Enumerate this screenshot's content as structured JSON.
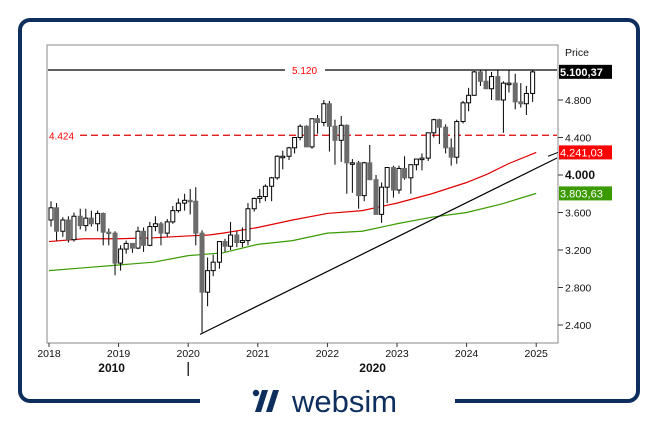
{
  "brand": {
    "name": "websim",
    "color": "#0e2f5e"
  },
  "axis": {
    "price_label": "Price",
    "hidden_tick": "5.200",
    "y_ticks": [
      {
        "value": 4800,
        "label": "4.800",
        "bold": false
      },
      {
        "value": 4400,
        "label": "4.400",
        "bold": false
      },
      {
        "value": 4000,
        "label": "4.000",
        "bold": true
      },
      {
        "value": 3600,
        "label": "3.600",
        "bold": false
      },
      {
        "value": 3200,
        "label": "3.200",
        "bold": false
      },
      {
        "value": 2800,
        "label": "2.800",
        "bold": false
      },
      {
        "value": 2400,
        "label": "2.400",
        "bold": false
      }
    ],
    "x_ticks": [
      "2018",
      "2019",
      "2020",
      "2021",
      "2022",
      "2023",
      "2024",
      "2025"
    ],
    "decades": [
      {
        "label": "2010",
        "x_year": 2018.9
      },
      {
        "label": "2020",
        "x_year": 2022.65
      }
    ]
  },
  "badges": {
    "last_price": {
      "label": "5.100,37",
      "value": 5100.37,
      "bg": "#000000",
      "fg": "#ffffff"
    },
    "ma_red": {
      "label": "4.241,03",
      "value": 4241.03,
      "bg": "#ff0000",
      "fg": "#ffffff"
    },
    "ma_green": {
      "label": "3.803,63",
      "value": 3803.63,
      "bg": "#3a9a00",
      "fg": "#ffffff"
    }
  },
  "levels": [
    {
      "label": "5.120",
      "value": 5120,
      "style": "solid",
      "color": "#000000",
      "label_color": "#ff0000"
    },
    {
      "label": "4.424",
      "value": 4424,
      "style": "dashed",
      "color": "#e00000",
      "label_color": "#ff0000"
    }
  ],
  "chart_data": {
    "type": "candlestick",
    "title": "",
    "ylabel": "Price",
    "ylim": [
      2250,
      5250
    ],
    "xlim": [
      2018.0,
      2025.3
    ],
    "grid": false,
    "series": [
      {
        "name": "Price (monthly OHLC)",
        "ohlc": [
          [
            2018.0,
            3520,
            3720,
            3450,
            3650
          ],
          [
            2018.08,
            3650,
            3700,
            3300,
            3400
          ],
          [
            2018.17,
            3400,
            3550,
            3340,
            3520
          ],
          [
            2018.25,
            3520,
            3560,
            3280,
            3310
          ],
          [
            2018.33,
            3310,
            3600,
            3290,
            3560
          ],
          [
            2018.42,
            3560,
            3640,
            3420,
            3460
          ],
          [
            2018.5,
            3460,
            3640,
            3400,
            3540
          ],
          [
            2018.58,
            3540,
            3620,
            3450,
            3480
          ],
          [
            2018.67,
            3480,
            3620,
            3400,
            3590
          ],
          [
            2018.75,
            3590,
            3600,
            3250,
            3390
          ],
          [
            2018.83,
            3390,
            3430,
            3250,
            3380
          ],
          [
            2018.92,
            3380,
            3400,
            2930,
            3060
          ],
          [
            2019.0,
            3060,
            3250,
            2980,
            3210
          ],
          [
            2019.08,
            3210,
            3300,
            3160,
            3270
          ],
          [
            2019.17,
            3270,
            3270,
            3170,
            3220
          ],
          [
            2019.25,
            3220,
            3450,
            3210,
            3400
          ],
          [
            2019.33,
            3400,
            3440,
            3180,
            3250
          ],
          [
            2019.42,
            3250,
            3500,
            3240,
            3450
          ],
          [
            2019.5,
            3450,
            3560,
            3400,
            3480
          ],
          [
            2019.58,
            3480,
            3500,
            3250,
            3380
          ],
          [
            2019.67,
            3380,
            3530,
            3340,
            3500
          ],
          [
            2019.75,
            3500,
            3670,
            3480,
            3620
          ],
          [
            2019.83,
            3620,
            3750,
            3600,
            3700
          ],
          [
            2019.92,
            3700,
            3800,
            3620,
            3730
          ],
          [
            2020.0,
            3730,
            3850,
            3580,
            3720
          ],
          [
            2020.08,
            3720,
            3870,
            3250,
            3380
          ],
          [
            2020.17,
            3380,
            3410,
            2320,
            2750
          ],
          [
            2020.25,
            2750,
            3120,
            2600,
            2980
          ],
          [
            2020.33,
            2980,
            3150,
            2920,
            3070
          ],
          [
            2020.42,
            3070,
            3230,
            3000,
            3290
          ],
          [
            2020.5,
            3290,
            3320,
            3180,
            3240
          ],
          [
            2020.58,
            3240,
            3500,
            3200,
            3360
          ],
          [
            2020.67,
            3360,
            3400,
            3230,
            3280
          ],
          [
            2020.75,
            3280,
            3440,
            3230,
            3300
          ],
          [
            2020.83,
            3300,
            3700,
            3250,
            3640
          ],
          [
            2020.92,
            3640,
            3760,
            3610,
            3750
          ],
          [
            2021.0,
            3750,
            3850,
            3700,
            3770
          ],
          [
            2021.08,
            3770,
            3900,
            3720,
            3880
          ],
          [
            2021.17,
            3880,
            3980,
            3720,
            3970
          ],
          [
            2021.25,
            3970,
            4210,
            3950,
            4200
          ],
          [
            2021.33,
            4200,
            4260,
            4060,
            4200
          ],
          [
            2021.42,
            4200,
            4300,
            4160,
            4290
          ],
          [
            2021.5,
            4290,
            4400,
            4230,
            4400
          ],
          [
            2021.58,
            4400,
            4540,
            4370,
            4520
          ],
          [
            2021.67,
            4520,
            4530,
            4300,
            4300
          ],
          [
            2021.75,
            4300,
            4540,
            4280,
            4600
          ],
          [
            2021.83,
            4600,
            4640,
            4440,
            4560
          ],
          [
            2021.92,
            4560,
            4800,
            4520,
            4760
          ],
          [
            2022.0,
            4760,
            4790,
            4250,
            4520
          ],
          [
            2022.08,
            4520,
            4590,
            4110,
            4370
          ],
          [
            2022.17,
            4370,
            4630,
            4140,
            4530
          ],
          [
            2022.25,
            4530,
            4540,
            3800,
            4130
          ],
          [
            2022.33,
            4130,
            4170,
            3810,
            4130
          ],
          [
            2022.42,
            4130,
            4150,
            3640,
            3780
          ],
          [
            2022.5,
            3780,
            4140,
            3720,
            4130
          ],
          [
            2022.58,
            4130,
            4320,
            3950,
            3950
          ],
          [
            2022.67,
            3950,
            4000,
            3590,
            3580
          ],
          [
            2022.75,
            3580,
            3920,
            3490,
            3870
          ],
          [
            2022.83,
            3870,
            4080,
            3700,
            4080
          ],
          [
            2022.92,
            4080,
            4100,
            3760,
            3840
          ],
          [
            2023.0,
            3840,
            4100,
            3800,
            4070
          ],
          [
            2023.08,
            4070,
            4200,
            3950,
            3970
          ],
          [
            2023.17,
            3970,
            4110,
            3800,
            4110
          ],
          [
            2023.25,
            4110,
            4170,
            4050,
            4170
          ],
          [
            2023.33,
            4170,
            4230,
            4050,
            4180
          ],
          [
            2023.42,
            4180,
            4450,
            4150,
            4450
          ],
          [
            2023.5,
            4450,
            4600,
            4400,
            4590
          ],
          [
            2023.58,
            4590,
            4600,
            4330,
            4510
          ],
          [
            2023.67,
            4510,
            4540,
            4230,
            4290
          ],
          [
            2023.75,
            4290,
            4390,
            4100,
            4190
          ],
          [
            2023.83,
            4190,
            4590,
            4120,
            4570
          ],
          [
            2023.92,
            4570,
            4790,
            4550,
            4770
          ],
          [
            2024.0,
            4770,
            4930,
            4680,
            4850
          ],
          [
            2024.08,
            4850,
            5110,
            4860,
            5100
          ],
          [
            2024.17,
            5100,
            5120,
            4950,
            5000
          ],
          [
            2024.25,
            5000,
            5120,
            4950,
            4920
          ],
          [
            2024.33,
            4920,
            5100,
            4800,
            5050
          ],
          [
            2024.42,
            5050,
            5120,
            4800,
            4800
          ],
          [
            2024.5,
            4800,
            5000,
            4450,
            4980
          ],
          [
            2024.58,
            4980,
            5120,
            4880,
            4980
          ],
          [
            2024.67,
            4980,
            5080,
            4700,
            4780
          ],
          [
            2024.75,
            4780,
            4980,
            4720,
            4760
          ],
          [
            2024.83,
            4760,
            4950,
            4640,
            4870
          ],
          [
            2024.92,
            4870,
            5120,
            4780,
            5100
          ]
        ]
      },
      {
        "name": "Moving average (red)",
        "color": "#e00000",
        "points": [
          [
            2018.0,
            3290
          ],
          [
            2018.5,
            3320
          ],
          [
            2019.0,
            3320
          ],
          [
            2019.5,
            3330
          ],
          [
            2020.0,
            3350
          ],
          [
            2020.3,
            3360
          ],
          [
            2020.5,
            3380
          ],
          [
            2021.0,
            3440
          ],
          [
            2021.5,
            3520
          ],
          [
            2022.0,
            3590
          ],
          [
            2022.5,
            3620
          ],
          [
            2023.0,
            3700
          ],
          [
            2023.5,
            3800
          ],
          [
            2024.0,
            3920
          ],
          [
            2024.3,
            4010
          ],
          [
            2024.6,
            4120
          ],
          [
            2025.0,
            4241
          ]
        ]
      },
      {
        "name": "Moving average (green)",
        "color": "#3a9a00",
        "points": [
          [
            2018.0,
            2980
          ],
          [
            2018.5,
            3010
          ],
          [
            2019.0,
            3040
          ],
          [
            2019.5,
            3070
          ],
          [
            2020.0,
            3140
          ],
          [
            2020.5,
            3170
          ],
          [
            2021.0,
            3260
          ],
          [
            2021.5,
            3300
          ],
          [
            2022.0,
            3380
          ],
          [
            2022.5,
            3400
          ],
          [
            2023.0,
            3480
          ],
          [
            2023.5,
            3550
          ],
          [
            2024.0,
            3600
          ],
          [
            2024.5,
            3690
          ],
          [
            2025.0,
            3804
          ]
        ]
      },
      {
        "name": "Trend line",
        "color": "#000000",
        "points": [
          [
            2020.17,
            2300
          ],
          [
            2025.35,
            4200
          ]
        ]
      }
    ]
  }
}
